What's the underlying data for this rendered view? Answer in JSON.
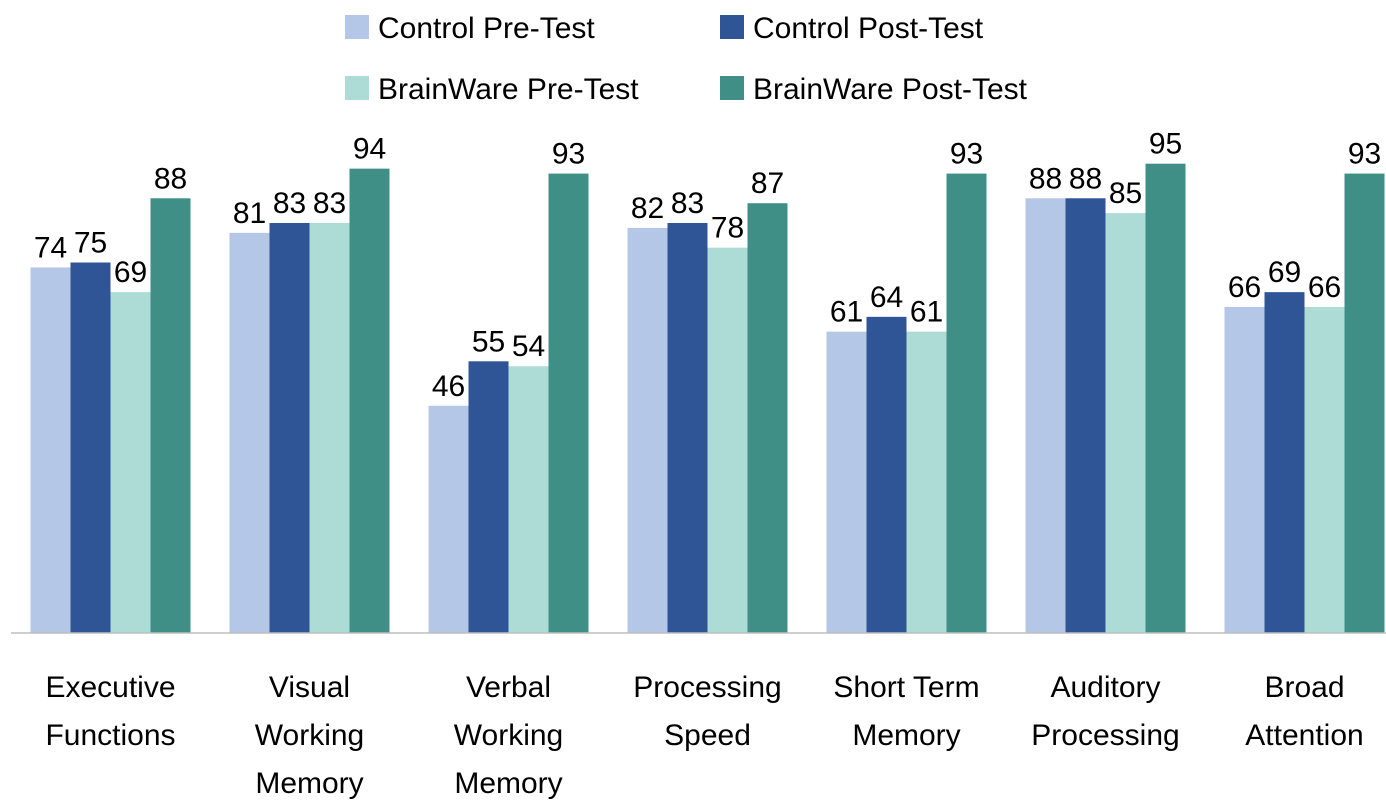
{
  "chart_data": {
    "type": "bar",
    "categories": [
      "Executive Functions",
      "Visual Working Memory",
      "Verbal Working Memory",
      "Processing Speed",
      "Short Term Memory",
      "Auditory Processing",
      "Broad Attention"
    ],
    "series": [
      {
        "name": "Control Pre-Test",
        "color": "#b4c7e7",
        "values": [
          74,
          81,
          46,
          82,
          61,
          88,
          66
        ]
      },
      {
        "name": "Control Post-Test",
        "color": "#2f5597",
        "values": [
          75,
          83,
          55,
          83,
          64,
          88,
          69
        ]
      },
      {
        "name": "BrainWare Pre-Test",
        "color": "#acdcd5",
        "values": [
          69,
          83,
          54,
          78,
          61,
          85,
          66
        ]
      },
      {
        "name": "BrainWare Post-Test",
        "color": "#3f8f87",
        "values": [
          88,
          94,
          93,
          87,
          93,
          95,
          93
        ]
      }
    ],
    "ylim": [
      0,
      100
    ],
    "legend": "top"
  }
}
